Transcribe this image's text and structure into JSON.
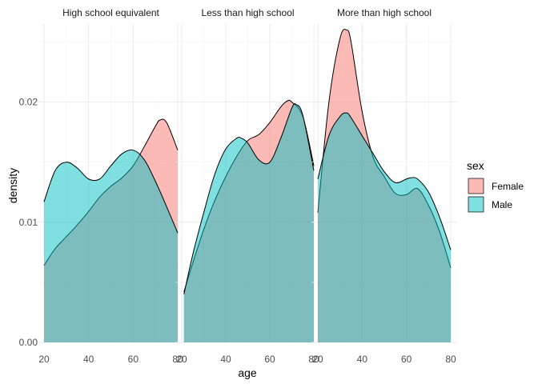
{
  "chart_data": {
    "type": "area",
    "subtype": "density",
    "xlabel": "age",
    "ylabel": "density",
    "xlim": [
      20,
      80
    ],
    "ylim": [
      0,
      0.0265
    ],
    "x_ticks": [
      20,
      40,
      60,
      80
    ],
    "y_ticks": [
      0.0,
      0.01,
      0.02
    ],
    "y_tick_labels": [
      "0.00",
      "0.01",
      "0.02"
    ],
    "grid": true,
    "legend": {
      "title": "sex",
      "placement": "right",
      "entries": [
        "Female",
        "Male"
      ]
    },
    "colors": {
      "Female": "#F8766D",
      "Male": "#00BFC4"
    },
    "fill_opacity": 0.5,
    "panels": [
      {
        "label": "High school equivalent",
        "series": [
          {
            "name": "Female",
            "x": [
              20,
              25,
              30,
              35,
              40,
              45,
              50,
              55,
              60,
              65,
              70,
              72,
              75,
              80
            ],
            "y": [
              0.0064,
              0.0078,
              0.0088,
              0.0098,
              0.0109,
              0.0121,
              0.013,
              0.0137,
              0.0147,
              0.0163,
              0.018,
              0.0185,
              0.0183,
              0.016
            ]
          },
          {
            "name": "Male",
            "x": [
              20,
              25,
              30,
              35,
              40,
              45,
              50,
              55,
              60,
              65,
              70,
              75,
              80
            ],
            "y": [
              0.0117,
              0.0143,
              0.015,
              0.0145,
              0.0136,
              0.0136,
              0.0147,
              0.0157,
              0.016,
              0.0152,
              0.0134,
              0.0113,
              0.0091
            ]
          }
        ]
      },
      {
        "label": "Less than high school",
        "series": [
          {
            "name": "Female",
            "x": [
              21,
              25,
              30,
              35,
              40,
              45,
              50,
              55,
              60,
              65,
              68,
              70,
              75,
              80
            ],
            "y": [
              0.0042,
              0.0066,
              0.0094,
              0.0118,
              0.0138,
              0.0155,
              0.0168,
              0.0173,
              0.0183,
              0.0196,
              0.0201,
              0.02,
              0.0188,
              0.0147
            ]
          },
          {
            "name": "Male",
            "x": [
              21,
              25,
              30,
              35,
              40,
              45,
              47,
              50,
              55,
              60,
              65,
              70,
              72,
              75,
              80
            ],
            "y": [
              0.004,
              0.0073,
              0.0108,
              0.014,
              0.0161,
              0.017,
              0.017,
              0.0166,
              0.0152,
              0.015,
              0.017,
              0.0195,
              0.0198,
              0.0189,
              0.0143
            ]
          }
        ]
      },
      {
        "label": "More than high school",
        "series": [
          {
            "name": "Female",
            "x": [
              20,
              25,
              30,
              33,
              35,
              40,
              45,
              50,
              55,
              60,
              65,
              70,
              75,
              80
            ],
            "y": [
              0.0108,
              0.02,
              0.0253,
              0.026,
              0.025,
              0.0192,
              0.0154,
              0.0138,
              0.0124,
              0.0123,
              0.0128,
              0.0114,
              0.0092,
              0.0062
            ]
          },
          {
            "name": "Male",
            "x": [
              20,
              25,
              30,
              33,
              35,
              40,
              45,
              50,
              55,
              60,
              62,
              65,
              70,
              75,
              80
            ],
            "y": [
              0.0136,
              0.0172,
              0.0188,
              0.0191,
              0.0187,
              0.0172,
              0.0157,
              0.0142,
              0.0133,
              0.0136,
              0.0137,
              0.0136,
              0.0125,
              0.0104,
              0.0077
            ]
          }
        ]
      }
    ]
  }
}
